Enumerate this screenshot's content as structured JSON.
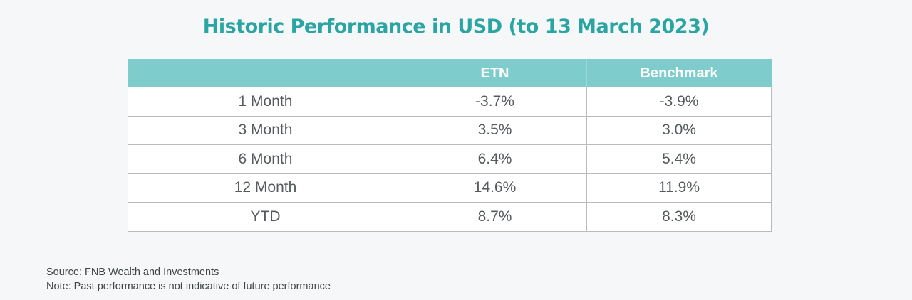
{
  "title": "Historic Performance in USD (to 13 March 2023)",
  "table": {
    "headers": [
      "",
      "ETN",
      "Benchmark"
    ],
    "rows": [
      {
        "period": "1 Month",
        "etn": "-3.7%",
        "benchmark": "-3.9%"
      },
      {
        "period": "3 Month",
        "etn": "3.5%",
        "benchmark": "3.0%"
      },
      {
        "period": "6 Month",
        "etn": "6.4%",
        "benchmark": "5.4%"
      },
      {
        "period": "12 Month",
        "etn": "14.6%",
        "benchmark": "11.9%"
      },
      {
        "period": "YTD",
        "etn": "8.7%",
        "benchmark": "8.3%"
      }
    ]
  },
  "footer": {
    "source": "Source: FNB Wealth and Investments",
    "note": "Note: Past performance is not indicative of future performance"
  },
  "colors": {
    "title": "#2aa5a3",
    "header_bg": "#7fcccc",
    "header_text": "#ffffff",
    "cell_text": "#555a5c",
    "page_bg": "#f6f7f8"
  }
}
